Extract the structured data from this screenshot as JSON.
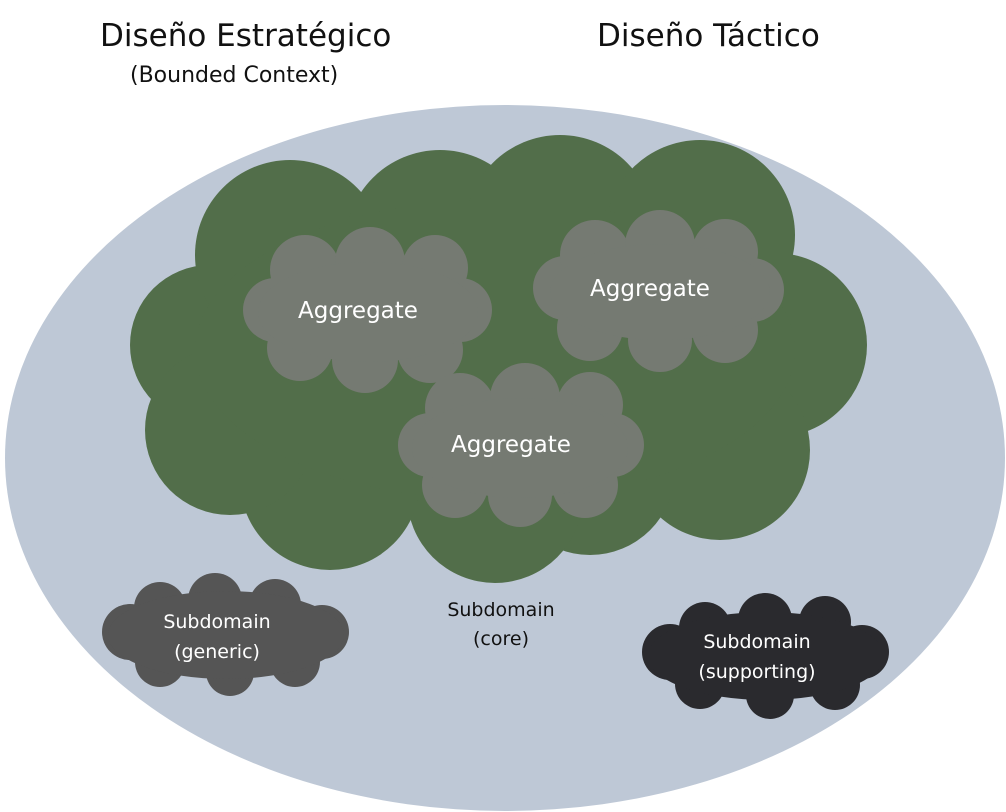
{
  "headers": {
    "strategic_title": "Diseño Estratégico",
    "strategic_subtitle": "(Bounded Context)",
    "tactical_title": "Diseño Táctico"
  },
  "core": {
    "label_line1": "Subdomain",
    "label_line2": "(core)"
  },
  "aggregates": [
    {
      "label": "Aggregate"
    },
    {
      "label": "Aggregate"
    },
    {
      "label": "Aggregate"
    }
  ],
  "generic": {
    "label_line1": "Subdomain",
    "label_line2": "(generic)"
  },
  "supporting": {
    "label_line1": "Subdomain",
    "label_line2": "(supporting)"
  },
  "colors": {
    "domain_ellipse": "#bec8d6",
    "core_cloud": "#526e4a",
    "aggregate_cloud": "#757a72",
    "generic_cloud": "#555555",
    "supporting_cloud": "#2a2a2e",
    "light_text": "#ffffff",
    "dark_text": "#111111"
  }
}
